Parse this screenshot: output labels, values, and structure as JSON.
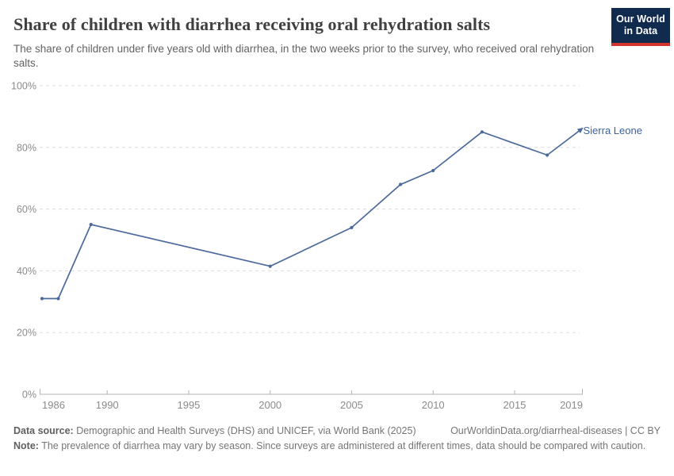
{
  "header": {
    "title": "Share of children with diarrhea receiving oral rehydration salts",
    "subtitle": "The share of children under five years old with diarrhea, in the two weeks prior to the survey, who received oral rehydration salts.",
    "logo": {
      "line1": "Our World",
      "line2": "in Data"
    }
  },
  "chart_data": {
    "type": "line",
    "title": "Share of children with diarrhea receiving oral rehydration salts",
    "subtitle": "The share of children under five years old with diarrhea, in the two weeks prior to the survey, who received oral rehydration salts.",
    "xlabel": "",
    "ylabel": "",
    "xlim": [
      1985.85,
      2019.2
    ],
    "ylim": [
      0,
      100
    ],
    "grid": "horizontal-dashed",
    "legend": "end-of-line-label",
    "x_tick_labels": [
      "1986",
      "1990",
      "1995",
      "2000",
      "2005",
      "2010",
      "2015",
      "2019"
    ],
    "y_tick_labels": [
      "0%",
      "20%",
      "40%",
      "60%",
      "80%",
      "100%"
    ],
    "series": [
      {
        "name": "Sierra Leone",
        "color": "#4C6A9C",
        "label_color": "#3d639c",
        "points": [
          [
            1986,
            31
          ],
          [
            1987,
            31
          ],
          [
            1989,
            55
          ],
          [
            2000,
            41.5
          ],
          [
            2005,
            54
          ],
          [
            2008,
            68
          ],
          [
            2010,
            72.5
          ],
          [
            2013,
            85
          ],
          [
            2017,
            77.5
          ],
          [
            2019,
            85.5
          ]
        ]
      }
    ]
  },
  "footer": {
    "source_label": "Data source:",
    "source_text": " Demographic and Health Surveys (DHS) and UNICEF, via World Bank (2025)",
    "attribution": "OurWorldinData.org/diarrheal-diseases | CC BY",
    "note_label": "Note:",
    "note_text": " The prevalence of diarrhea may vary by season. Since surveys are administered at different times, data should be compared with caution."
  },
  "colors": {
    "title": "#404040",
    "subtitle": "#636363",
    "axis_text": "#8b8b8b",
    "gridline": "#dcdcdc",
    "axis_line": "#b3b3b3",
    "line": "#4C6A9C",
    "entity_label": "#3d639c",
    "logo_bg": "#112b4e",
    "logo_stripe": "#d0342c",
    "footer_text": "#757575"
  }
}
